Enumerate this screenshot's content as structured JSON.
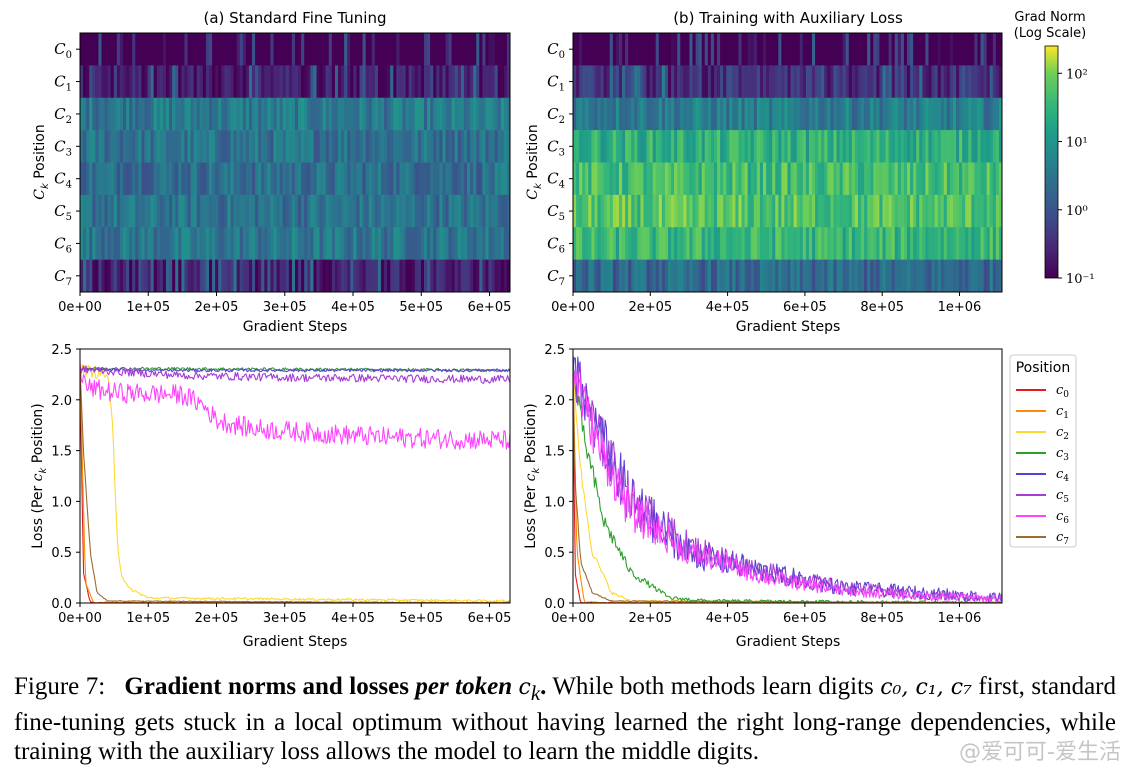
{
  "figure": {
    "caption": {
      "label": "Figure 7:",
      "bold_title": "Gradient norms and losses",
      "bold_italic": "per token",
      "token_symbol": "c",
      "token_sub": "k",
      "body_part1": "While both methods learn digits",
      "digits": "c₀, c₁, c₇",
      "body_part2": "first, standard fine-tuning gets stuck in a local optimum without having learned the right long-range dependencies, while training with the auxiliary loss allows the model to learn the middle digits."
    },
    "watermark": "@爱可可-爱生活"
  },
  "colorbar": {
    "title_line1": "Grad Norm",
    "title_line2": "(Log Scale)",
    "ticks": [
      "10²",
      "10¹",
      "10⁰",
      "10⁻¹"
    ],
    "range_log10": [
      -1,
      2.4
    ]
  },
  "legend": {
    "title": "Position",
    "colors": [
      "#e41a1c",
      "#ff8c00",
      "#ffd92f",
      "#2ca02c",
      "#5e3fd3",
      "#a43cd6",
      "#ff44ff",
      "#9c6b30"
    ],
    "labels": [
      "c0",
      "c1",
      "c2",
      "c3",
      "c4",
      "c5",
      "c6",
      "c7"
    ]
  },
  "chart_data": [
    {
      "type": "heatmap",
      "title": "(a) Standard Fine Tuning",
      "xlabel": "Gradient Steps",
      "ylabel": "C_k Position",
      "y_categories": [
        "C0",
        "C1",
        "C2",
        "C3",
        "C4",
        "C5",
        "C6",
        "C7"
      ],
      "xlim": [
        0,
        630000
      ],
      "x_ticks": [
        "0e+00",
        "1e+05",
        "2e+05",
        "3e+05",
        "4e+05",
        "5e+05",
        "6e+05"
      ],
      "x_tick_values": [
        0,
        100000,
        200000,
        300000,
        400000,
        500000,
        600000
      ],
      "log10_grad_norm_by_row": [
        -1.0,
        -0.8,
        0.55,
        0.45,
        0.4,
        0.45,
        0.5,
        -0.7
      ]
    },
    {
      "type": "heatmap",
      "title": "(b) Training with Auxiliary Loss",
      "xlabel": "Gradient Steps",
      "ylabel": "C_k Position",
      "y_categories": [
        "C0",
        "C1",
        "C2",
        "C3",
        "C4",
        "C5",
        "C6",
        "C7"
      ],
      "xlim": [
        0,
        1110000
      ],
      "x_ticks": [
        "0e+00",
        "2e+05",
        "4e+05",
        "6e+05",
        "8e+05",
        "1e+06"
      ],
      "x_tick_values": [
        0,
        200000,
        400000,
        600000,
        800000,
        1000000
      ],
      "log10_grad_norm_by_row": [
        -1.0,
        -0.5,
        0.6,
        1.4,
        1.6,
        1.7,
        1.5,
        0.3
      ]
    },
    {
      "type": "line",
      "xlabel": "Gradient Steps",
      "ylabel": "Loss (Per c_k Position)",
      "xlim": [
        0,
        630000
      ],
      "ylim": [
        0,
        2.5
      ],
      "x_ticks": [
        "0e+00",
        "1e+05",
        "2e+05",
        "3e+05",
        "4e+05",
        "5e+05",
        "6e+05"
      ],
      "x_tick_values": [
        0,
        100000,
        200000,
        300000,
        400000,
        500000,
        600000
      ],
      "y_ticks": [
        "0.0",
        "0.5",
        "1.0",
        "1.5",
        "2.0",
        "2.5"
      ],
      "y_tick_values": [
        0,
        0.5,
        1.0,
        1.5,
        2.0,
        2.5
      ],
      "series": [
        {
          "name": "c0",
          "x": [
            0,
            5000,
            15000,
            630000
          ],
          "y": [
            2.3,
            0.3,
            0.0,
            0.0
          ]
        },
        {
          "name": "c1",
          "x": [
            0,
            8000,
            20000,
            630000
          ],
          "y": [
            2.3,
            0.2,
            0.0,
            0.0
          ]
        },
        {
          "name": "c2",
          "x": [
            0,
            40000,
            48000,
            55000,
            60000,
            70000,
            100000,
            630000
          ],
          "y": [
            2.3,
            2.25,
            1.7,
            0.6,
            0.3,
            0.15,
            0.05,
            0.02
          ]
        },
        {
          "name": "c3",
          "x": [
            0,
            630000
          ],
          "y": [
            2.31,
            2.29
          ]
        },
        {
          "name": "c4",
          "x": [
            0,
            100000,
            630000
          ],
          "y": [
            2.3,
            2.29,
            2.29
          ]
        },
        {
          "name": "c5",
          "x": [
            0,
            50000,
            150000,
            300000,
            630000
          ],
          "y": [
            2.3,
            2.28,
            2.24,
            2.22,
            2.2
          ]
        },
        {
          "name": "c6",
          "x": [
            0,
            10000,
            50000,
            150000,
            180000,
            200000,
            250000,
            350000,
            450000,
            630000
          ],
          "y": [
            2.3,
            2.12,
            2.07,
            2.05,
            1.95,
            1.8,
            1.72,
            1.67,
            1.63,
            1.6
          ]
        },
        {
          "name": "c7",
          "x": [
            0,
            5000,
            15000,
            25000,
            40000,
            630000
          ],
          "y": [
            2.3,
            1.5,
            0.5,
            0.1,
            0.02,
            0.0
          ]
        }
      ]
    },
    {
      "type": "line",
      "xlabel": "Gradient Steps",
      "ylabel": "Loss (Per c_k Position)",
      "xlim": [
        0,
        1110000
      ],
      "ylim": [
        0,
        2.5
      ],
      "x_ticks": [
        "0e+00",
        "2e+05",
        "4e+05",
        "6e+05",
        "8e+05",
        "1e+06"
      ],
      "x_tick_values": [
        0,
        200000,
        400000,
        600000,
        800000,
        1000000
      ],
      "y_ticks": [
        "0.0",
        "0.5",
        "1.0",
        "1.5",
        "2.0",
        "2.5"
      ],
      "y_tick_values": [
        0,
        0.5,
        1.0,
        1.5,
        2.0,
        2.5
      ],
      "series": [
        {
          "name": "c0",
          "x": [
            0,
            5000,
            20000,
            1110000
          ],
          "y": [
            2.3,
            0.3,
            0.0,
            0.0
          ]
        },
        {
          "name": "c1",
          "x": [
            0,
            10000,
            30000,
            1110000
          ],
          "y": [
            2.3,
            0.5,
            0.0,
            0.0
          ]
        },
        {
          "name": "c2",
          "x": [
            0,
            20000,
            50000,
            100000,
            150000,
            1110000
          ],
          "y": [
            2.3,
            1.3,
            0.5,
            0.1,
            0.02,
            0.0
          ]
        },
        {
          "name": "c3",
          "x": [
            0,
            30000,
            80000,
            150000,
            250000,
            350000,
            1110000
          ],
          "y": [
            2.3,
            1.6,
            0.8,
            0.3,
            0.05,
            0.02,
            0.0
          ]
        },
        {
          "name": "c4",
          "x": [
            0,
            50000,
            150000,
            300000,
            500000,
            700000,
            900000,
            1110000
          ],
          "y": [
            2.3,
            1.8,
            1.0,
            0.5,
            0.3,
            0.15,
            0.1,
            0.05
          ]
        },
        {
          "name": "c5",
          "x": [
            0,
            60000,
            150000,
            300000,
            500000,
            700000,
            900000,
            1110000
          ],
          "y": [
            2.3,
            1.7,
            1.0,
            0.55,
            0.3,
            0.15,
            0.08,
            0.05
          ]
        },
        {
          "name": "c6",
          "x": [
            0,
            60000,
            150000,
            300000,
            500000,
            700000,
            900000,
            1110000
          ],
          "y": [
            2.3,
            1.6,
            0.9,
            0.5,
            0.25,
            0.12,
            0.07,
            0.04
          ]
        },
        {
          "name": "c7",
          "x": [
            0,
            5000,
            20000,
            50000,
            100000,
            1110000
          ],
          "y": [
            2.3,
            1.2,
            0.4,
            0.1,
            0.02,
            0.0
          ]
        }
      ]
    }
  ]
}
